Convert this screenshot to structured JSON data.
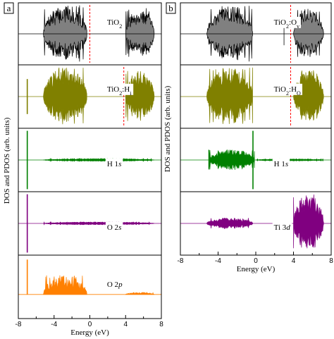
{
  "chart_data": [
    {
      "type": "area",
      "panel_label": "a",
      "xlabel": "Energy (eV)",
      "ylabel": "DOS and PDOS (arb. units)",
      "xlim": [
        -8,
        8
      ],
      "xticks": [
        "-8",
        "-4",
        "0",
        "4",
        "8"
      ],
      "subplots": [
        {
          "label_parts": [
            {
              "t": "TiO",
              "st": "n"
            },
            {
              "t": "2",
              "st": "sub"
            }
          ],
          "color": "#808080",
          "symmetric": true,
          "fermi_level": 0.0,
          "series": [
            {
              "name": "valence band",
              "range": [
                -5.2,
                -0.3
              ],
              "peak": 1.0
            },
            {
              "name": "conduction band",
              "range": [
                4.0,
                7.2
              ],
              "peak": 0.9
            }
          ]
        },
        {
          "label_parts": [
            {
              "t": "TiO",
              "st": "n"
            },
            {
              "t": "2",
              "st": "sub"
            },
            {
              "t": ":H",
              "st": "n"
            },
            {
              "t": "i",
              "st": "sub"
            }
          ],
          "color": "#808000",
          "symmetric": true,
          "fermi_level": 3.8,
          "series": [
            {
              "name": "H 1s state",
              "range": [
                -7.0,
                -7.0
              ],
              "peak": 0.6
            },
            {
              "name": "valence band",
              "range": [
                -5.2,
                -0.3
              ],
              "peak": 1.0
            },
            {
              "name": "conduction band",
              "range": [
                4.0,
                7.2
              ],
              "peak": 0.9
            }
          ]
        },
        {
          "label_parts": [
            {
              "t": "H 1",
              "st": "n"
            },
            {
              "t": "s",
              "st": "i"
            }
          ],
          "color": "#008000",
          "symmetric": true,
          "series": [
            {
              "name": "H 1s peak",
              "range": [
                -7.0,
                -7.0
              ],
              "peak": 1.0
            },
            {
              "name": "band tail",
              "range": [
                -5.2,
                7.2
              ],
              "peak": 0.05
            }
          ]
        },
        {
          "label_parts": [
            {
              "t": "O 2",
              "st": "n"
            },
            {
              "t": "s",
              "st": "i"
            }
          ],
          "color": "#800080",
          "symmetric": true,
          "series": [
            {
              "name": "O 2s peak",
              "range": [
                -7.0,
                -7.0
              ],
              "peak": 1.0
            },
            {
              "name": "band tail",
              "range": [
                -5.2,
                7.2
              ],
              "peak": 0.05
            }
          ]
        },
        {
          "label_parts": [
            {
              "t": "O 2",
              "st": "n"
            },
            {
              "t": "p",
              "st": "i"
            }
          ],
          "color": "#ff8000",
          "symmetric": false,
          "series": [
            {
              "name": "O 2p peak",
              "range": [
                -7.0,
                -7.0
              ],
              "peak": 1.0
            },
            {
              "name": "valence band",
              "range": [
                -5.2,
                -0.3
              ],
              "peak": 0.55
            },
            {
              "name": "conduction band",
              "range": [
                4.0,
                7.2
              ],
              "peak": 0.06
            }
          ]
        }
      ]
    },
    {
      "type": "area",
      "panel_label": "b",
      "xlabel": "Energy (eV)",
      "ylabel": "DOS and PDOS (arb. units)",
      "xlim": [
        -8,
        8
      ],
      "xticks": [
        "-8",
        "-4",
        "0",
        "4",
        "8"
      ],
      "subplots": [
        {
          "label_parts": [
            {
              "t": "TiO",
              "st": "n"
            },
            {
              "t": "2",
              "st": "sub"
            },
            {
              "t": ":O",
              "st": "n"
            },
            {
              "t": "v",
              "st": "sub"
            }
          ],
          "color": "#808080",
          "symmetric": true,
          "fermi_level": 3.7,
          "series": [
            {
              "name": "valence band",
              "range": [
                -5.2,
                -0.3
              ],
              "peak": 1.0
            },
            {
              "name": "defect state",
              "range": [
                3.0,
                3.0
              ],
              "peak": 0.4
            },
            {
              "name": "conduction band",
              "range": [
                4.0,
                7.2
              ],
              "peak": 0.9
            }
          ]
        },
        {
          "label_parts": [
            {
              "t": "TiO",
              "st": "n"
            },
            {
              "t": "2",
              "st": "sub"
            },
            {
              "t": ":H",
              "st": "n"
            },
            {
              "t": "O",
              "st": "sub"
            }
          ],
          "color": "#808000",
          "symmetric": true,
          "fermi_level": 3.7,
          "series": [
            {
              "name": "valence band",
              "range": [
                -5.2,
                -0.3
              ],
              "peak": 1.0
            },
            {
              "name": "conduction band",
              "range": [
                4.0,
                7.2
              ],
              "peak": 0.9
            }
          ]
        },
        {
          "label_parts": [
            {
              "t": "H 1",
              "st": "n"
            },
            {
              "t": "s",
              "st": "i"
            }
          ],
          "color": "#008000",
          "symmetric": true,
          "series": [
            {
              "name": "H 1s band",
              "range": [
                -5.0,
                -0.1
              ],
              "peak": 0.35
            },
            {
              "name": "H 1s peak",
              "range": [
                -0.3,
                -0.3
              ],
              "peak": 1.0
            },
            {
              "name": "band tail",
              "range": [
                0.0,
                7.2
              ],
              "peak": 0.04
            }
          ]
        },
        {
          "label_parts": [
            {
              "t": "Ti 3",
              "st": "n"
            },
            {
              "t": "d",
              "st": "i"
            }
          ],
          "color": "#800080",
          "symmetric": true,
          "series": [
            {
              "name": "valence band",
              "range": [
                -5.2,
                -0.3
              ],
              "peak": 0.2
            },
            {
              "name": "conduction band",
              "range": [
                4.0,
                7.2
              ],
              "peak": 1.0
            }
          ]
        }
      ]
    }
  ]
}
